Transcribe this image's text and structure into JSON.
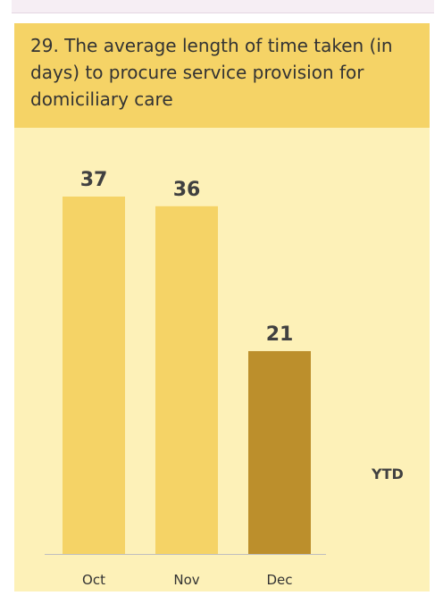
{
  "card": {
    "title": "29. The average length of time taken (in days) to procure service provision for domiciliary care",
    "ytd_label": "YTD"
  },
  "colors": {
    "header_bg": "#f5d366",
    "card_bg": "#fdf1b8",
    "bar_light": "#f5d366",
    "bar_dark": "#bc8f2c"
  },
  "chart_data": {
    "type": "bar",
    "title": "29. The average length of time taken (in days) to procure service provision for domiciliary care",
    "categories": [
      "Oct",
      "Nov",
      "Dec"
    ],
    "values": [
      37,
      36,
      21
    ],
    "bar_colors": [
      "#f5d366",
      "#f5d366",
      "#bc8f2c"
    ],
    "data_labels": [
      "37",
      "36",
      "21"
    ],
    "xlabel": "",
    "ylabel": "",
    "ylim": [
      0,
      37
    ],
    "grid": false,
    "legend": "none"
  }
}
